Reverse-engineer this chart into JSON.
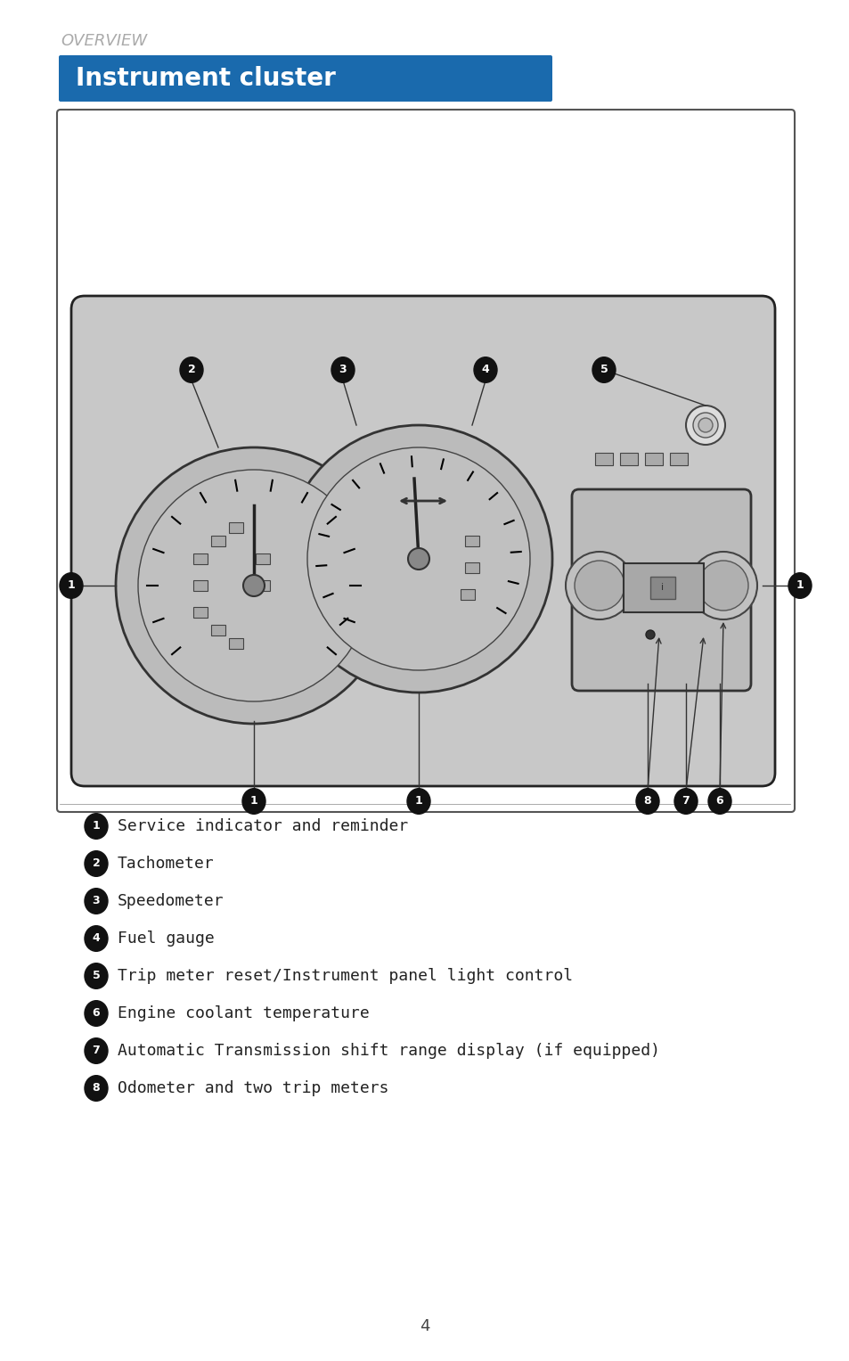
{
  "title": "Instrument cluster",
  "header": "OVERVIEW",
  "title_bg": "#1a6aad",
  "title_color": "#ffffff",
  "page_number": "4",
  "bg_color": "#ffffff",
  "legend": [
    {
      "num": "1",
      "text": "Service indicator and reminder"
    },
    {
      "num": "2",
      "text": "Tachometer"
    },
    {
      "num": "3",
      "text": "Speedometer"
    },
    {
      "num": "4",
      "text": "Fuel gauge"
    },
    {
      "num": "5",
      "text": "Trip meter reset/Instrument panel light control"
    },
    {
      "num": "6",
      "text": "Engine coolant temperature"
    },
    {
      "num": "7",
      "text": "Automatic Transmission shift range display (if equipped)"
    },
    {
      "num": "8",
      "text": "Odometer and two trip meters"
    }
  ],
  "gauge_bg": "#c8c8c8",
  "gauge_border": "#222222",
  "bullet_bg": "#111111",
  "bullet_color": "#ffffff"
}
